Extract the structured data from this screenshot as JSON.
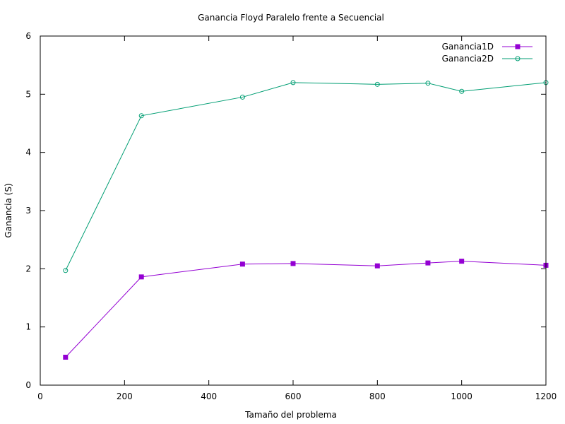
{
  "chart_data": {
    "type": "line",
    "title": "Ganancia Floyd Paralelo frente a Secuencial",
    "xlabel": "Tamaño del problema",
    "ylabel": "Ganancia (S)",
    "xlim": [
      0,
      1200
    ],
    "ylim": [
      0,
      6
    ],
    "xticks": [
      0,
      200,
      400,
      600,
      800,
      1000,
      1200
    ],
    "yticks": [
      0,
      1,
      2,
      3,
      4,
      5,
      6
    ],
    "grid": false,
    "legend_position": "top-right",
    "series": [
      {
        "name": "Ganancia1D",
        "color": "#9400d3",
        "marker": "filled-square",
        "x": [
          60,
          240,
          480,
          600,
          800,
          920,
          1000,
          1200
        ],
        "y": [
          0.48,
          1.86,
          2.08,
          2.09,
          2.05,
          2.1,
          2.13,
          2.06
        ]
      },
      {
        "name": "Ganancia2D",
        "color": "#009e73",
        "marker": "open-circle",
        "x": [
          60,
          240,
          480,
          600,
          800,
          920,
          1000,
          1200
        ],
        "y": [
          1.97,
          4.63,
          4.95,
          5.2,
          5.17,
          5.19,
          5.05,
          5.2
        ]
      }
    ]
  }
}
